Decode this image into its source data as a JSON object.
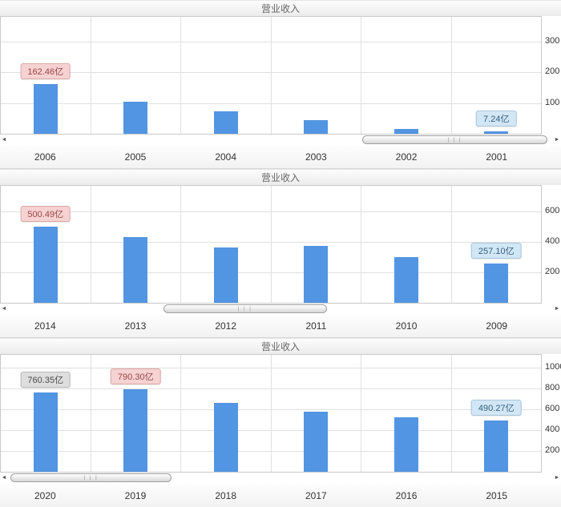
{
  "colors": {
    "bar": "#5295E2",
    "grid": "#E0E0E0",
    "plot_border": "#C9C9C9",
    "callout": {
      "max": {
        "bg": "#F6D2D2",
        "border": "#DCA8A8",
        "text": "#9A4444"
      },
      "min": {
        "bg": "#D2E7F6",
        "border": "#A9C6DC",
        "text": "#355F7C"
      },
      "latest": {
        "bg": "#DEDEDE",
        "border": "#B8B8B8",
        "text": "#4A4A4A"
      }
    }
  },
  "icons": {
    "scroll_left": "◄",
    "scroll_right": "►",
    "grip": "| | |"
  },
  "scrollbars": [
    {
      "left_pct": 65,
      "width_pct": 34
    },
    {
      "left_pct": 28.5,
      "width_pct": 30
    },
    {
      "left_pct": 0.5,
      "width_pct": 29.5
    }
  ],
  "chart_data": [
    {
      "type": "bar",
      "title": "营业收入",
      "xlabel": "",
      "ylabel": "",
      "unit": "亿",
      "categories": [
        "2006",
        "2005",
        "2004",
        "2003",
        "2002",
        "2001"
      ],
      "values": [
        162.46,
        105,
        72,
        45,
        15,
        7.24
      ],
      "ylim": [
        0,
        380
      ],
      "yticks": [
        300,
        200,
        100
      ],
      "grid": true,
      "legend_position": "none",
      "callouts": [
        {
          "category": "2006",
          "label": "162.46亿",
          "kind": "max"
        },
        {
          "category": "2001",
          "label": "7.24亿",
          "kind": "min"
        }
      ]
    },
    {
      "type": "bar",
      "title": "营业收入",
      "xlabel": "",
      "ylabel": "",
      "unit": "亿",
      "categories": [
        "2014",
        "2013",
        "2012",
        "2011",
        "2010",
        "2009"
      ],
      "values": [
        500.49,
        435,
        365,
        375,
        300,
        257.1
      ],
      "ylim": [
        0,
        770
      ],
      "yticks": [
        600,
        400,
        200
      ],
      "grid": true,
      "legend_position": "none",
      "callouts": [
        {
          "category": "2014",
          "label": "500.49亿",
          "kind": "max"
        },
        {
          "category": "2009",
          "label": "257.10亿",
          "kind": "min"
        }
      ]
    },
    {
      "type": "bar",
      "title": "营业收入",
      "xlabel": "",
      "ylabel": "",
      "unit": "亿",
      "categories": [
        "2020",
        "2019",
        "2018",
        "2017",
        "2016",
        "2015"
      ],
      "values": [
        760.35,
        790.3,
        660,
        575,
        520,
        490.27
      ],
      "ylim": [
        0,
        1120
      ],
      "yticks": [
        1000,
        800,
        600,
        400,
        200
      ],
      "grid": true,
      "legend_position": "none",
      "callouts": [
        {
          "category": "2020",
          "label": "760.35亿",
          "kind": "latest"
        },
        {
          "category": "2019",
          "label": "790.30亿",
          "kind": "max"
        },
        {
          "category": "2015",
          "label": "490.27亿",
          "kind": "min"
        }
      ]
    }
  ]
}
